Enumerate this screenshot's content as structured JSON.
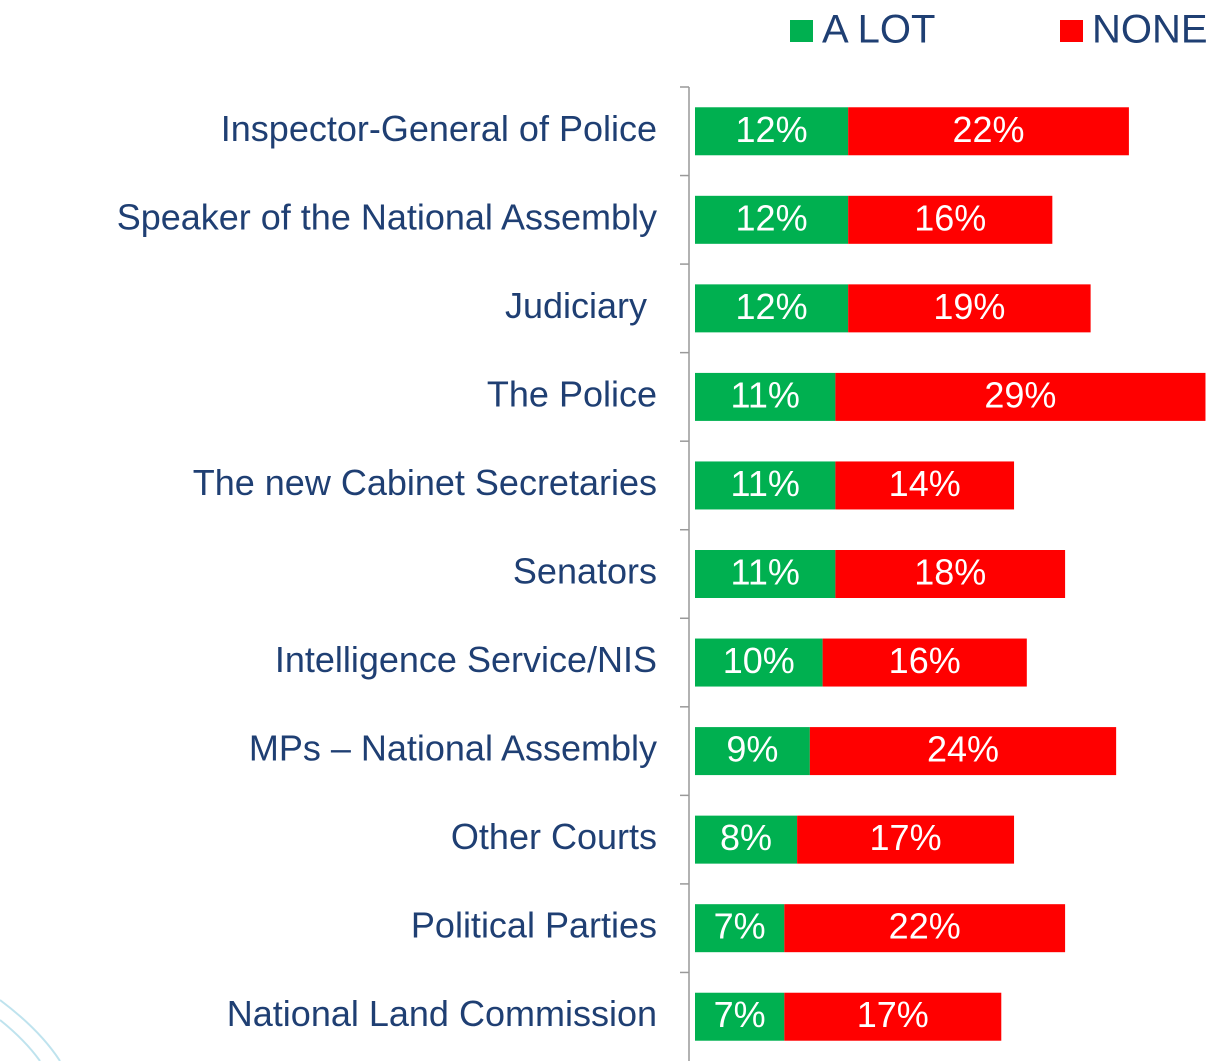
{
  "chart_data": {
    "type": "stacked_barh",
    "categories": [
      "Inspector-General of Police",
      "Speaker of the National Assembly",
      "Judiciary ",
      "The Police",
      "The new Cabinet Secretaries",
      "Senators",
      "Intelligence Service/NIS",
      "MPs – National Assembly",
      "Other Courts",
      "Political Parties",
      "National Land Commission"
    ],
    "series": [
      {
        "name": "A LOT",
        "color": "#00b050",
        "values": [
          12,
          12,
          12,
          11,
          11,
          11,
          10,
          9,
          8,
          7,
          7
        ],
        "value_labels": [
          "12%",
          "12%",
          "12%",
          "11%",
          "11%",
          "11%",
          "10%",
          "9%",
          "8%",
          "7%",
          "7%"
        ]
      },
      {
        "name": "NONE",
        "color": "#ff0000",
        "values": [
          22,
          16,
          19,
          29,
          14,
          18,
          16,
          24,
          17,
          22,
          17
        ],
        "value_labels": [
          "22%",
          "16%",
          "19%",
          "29%",
          "14%",
          "18%",
          "16%",
          "24%",
          "17%",
          "22%",
          "17%"
        ]
      }
    ],
    "xlim": [
      0,
      42
    ],
    "legend": "top-right"
  }
}
